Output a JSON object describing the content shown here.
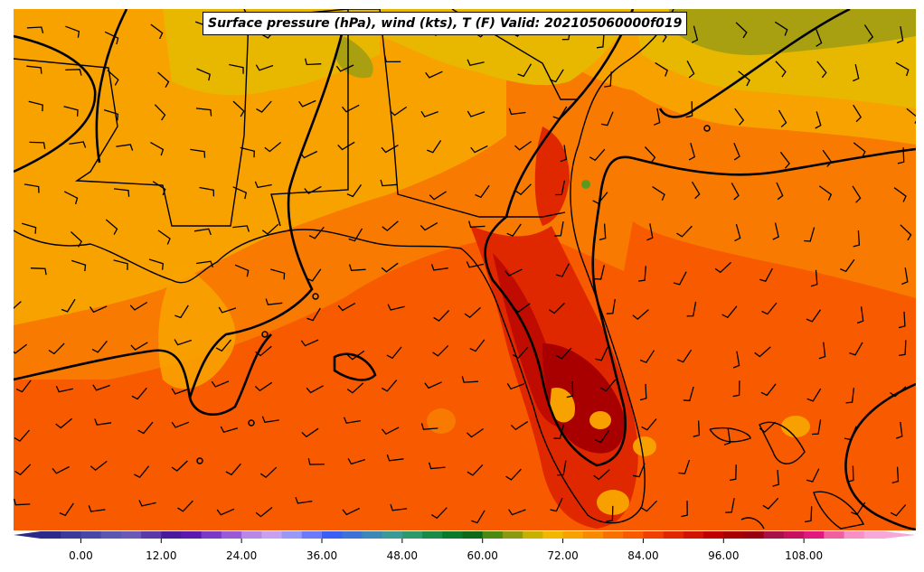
{
  "title": "Surface pressure (hPa), wind (kts), T (F) Valid: 202105060000f019",
  "colors": {
    "gulf": "#f85a00",
    "warm_land": "#f87a00",
    "mild_land": "#f8a200",
    "cool_land": "#e8b800",
    "olive": "#a8a010",
    "hot": "#e02800",
    "hottest": "#c00c00",
    "peak": "#a80000",
    "isobar": "#000000"
  },
  "colorbar": {
    "min": -6,
    "max": 120,
    "step": 3,
    "tick_labels": [
      "0.00",
      "12.00",
      "24.00",
      "36.00",
      "48.00",
      "60.00",
      "72.00",
      "84.00",
      "96.00",
      "108.00"
    ],
    "colors": [
      "#2a2a8a",
      "#3a3a9a",
      "#4848a6",
      "#5858b0",
      "#6a5ab8",
      "#5a3aa8",
      "#4a1a9e",
      "#5a1ab0",
      "#7a3ac8",
      "#9a5ad8",
      "#b888e8",
      "#c8a0f0",
      "#9898f8",
      "#6a7af8",
      "#3a5ef8",
      "#3a72d8",
      "#3a88b8",
      "#3a9a98",
      "#2a9a6a",
      "#1a8a4a",
      "#0a7a2a",
      "#0a6a1a",
      "#4a8a10",
      "#8a9a10",
      "#c8b000",
      "#f0b800",
      "#f8a000",
      "#f88a00",
      "#f87000",
      "#f85a00",
      "#f04000",
      "#e02800",
      "#d01400",
      "#c00000",
      "#a80000",
      "#980010",
      "#a81048",
      "#c81060",
      "#e01880",
      "#f060a0",
      "#f890c8",
      "#f8a8d8"
    ]
  },
  "map_layers": [
    {
      "name": "cool-land-region",
      "color": "#e8b800"
    },
    {
      "name": "mild-land-region",
      "color": "#f8a200"
    },
    {
      "name": "olive-cold-region",
      "color": "#a8a010"
    },
    {
      "name": "warm-land-region",
      "color": "#f87a00"
    },
    {
      "name": "florida-hot-region",
      "color": "#e02800"
    },
    {
      "name": "florida-hottest-region",
      "color": "#c00c00"
    },
    {
      "name": "florida-peak-region",
      "color": "#a80000"
    }
  ]
}
